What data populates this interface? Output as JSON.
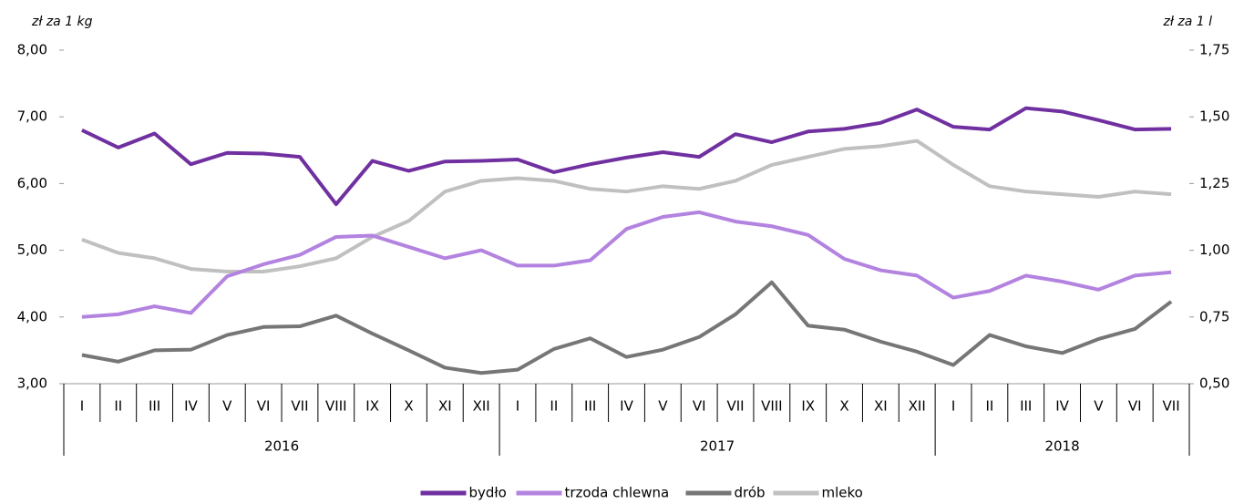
{
  "chart_data": {
    "type": "line",
    "y_label": "zł za 1 kg",
    "y2_label": "zł za 1 l",
    "categories": [
      "I",
      "II",
      "III",
      "IV",
      "V",
      "VI",
      "VII",
      "VIII",
      "IX",
      "X",
      "XI",
      "XII",
      "I",
      "II",
      "III",
      "IV",
      "V",
      "VI",
      "VII",
      "VIII",
      "IX",
      "X",
      "XI",
      "XII",
      "I",
      "II",
      "III",
      "IV",
      "V",
      "VI",
      "VII"
    ],
    "years": [
      "2016",
      "2017",
      "2018"
    ],
    "ylim": [
      3,
      8
    ],
    "yticks": [
      {
        "value": 3,
        "label": "3,00"
      },
      {
        "value": 4,
        "label": "4,00"
      },
      {
        "value": 5,
        "label": "5,00"
      },
      {
        "value": 6,
        "label": "6,00"
      },
      {
        "value": 7,
        "label": "7,00"
      },
      {
        "value": 8,
        "label": "8,00"
      }
    ],
    "y2lim": [
      0.5,
      1.75
    ],
    "y2ticks": [
      {
        "value": 0.5,
        "label": "0,50"
      },
      {
        "value": 0.75,
        "label": "0,75"
      },
      {
        "value": 1,
        "label": "1,00"
      },
      {
        "value": 1.25,
        "label": "1,25"
      },
      {
        "value": 1.5,
        "label": "1,50"
      },
      {
        "value": 1.75,
        "label": "1,75"
      }
    ],
    "grid": false,
    "legend": "bottom",
    "series": [
      {
        "name": "bydło",
        "color": "#7030a0",
        "values": [
          6.8,
          6.54,
          6.75,
          6.29,
          6.46,
          6.45,
          6.4,
          5.69,
          6.34,
          6.19,
          6.33,
          6.34,
          6.36,
          6.17,
          6.29,
          6.39,
          6.47,
          6.4,
          6.74,
          6.62,
          6.78,
          6.82,
          6.91,
          7.11,
          6.85,
          6.81,
          7.13,
          7.08,
          6.95,
          6.81,
          6.82
        ]
      },
      {
        "name": "trzoda chlewna",
        "color": "#b383e0",
        "values": [
          4.0,
          4.04,
          4.16,
          4.06,
          4.61,
          4.79,
          4.93,
          5.2,
          5.22,
          5.05,
          4.88,
          5.0,
          4.77,
          4.77,
          4.85,
          5.32,
          5.5,
          5.57,
          5.43,
          5.36,
          5.23,
          4.87,
          4.7,
          4.62,
          4.29,
          4.39,
          4.62,
          4.53,
          4.41,
          4.62,
          4.67
        ]
      },
      {
        "name": "drób",
        "color": "#767676",
        "values": [
          3.43,
          3.33,
          3.5,
          3.51,
          3.73,
          3.85,
          3.86,
          4.02,
          3.75,
          3.5,
          3.24,
          3.16,
          3.21,
          3.52,
          3.68,
          3.4,
          3.51,
          3.7,
          4.04,
          4.52,
          3.87,
          3.81,
          3.63,
          3.48,
          3.28,
          3.73,
          3.56,
          3.46,
          3.67,
          3.82,
          4.23
        ]
      },
      {
        "name": "mleko",
        "color": "#c0c0c0",
        "axis": "y2",
        "values": [
          1.04,
          0.99,
          0.97,
          0.93,
          0.92,
          0.92,
          0.94,
          0.97,
          1.05,
          1.11,
          1.22,
          1.26,
          1.27,
          1.26,
          1.23,
          1.22,
          1.24,
          1.23,
          1.26,
          1.32,
          1.35,
          1.38,
          1.39,
          1.41,
          1.32,
          1.24,
          1.22,
          1.21,
          1.2,
          1.22,
          1.21
        ]
      }
    ]
  }
}
